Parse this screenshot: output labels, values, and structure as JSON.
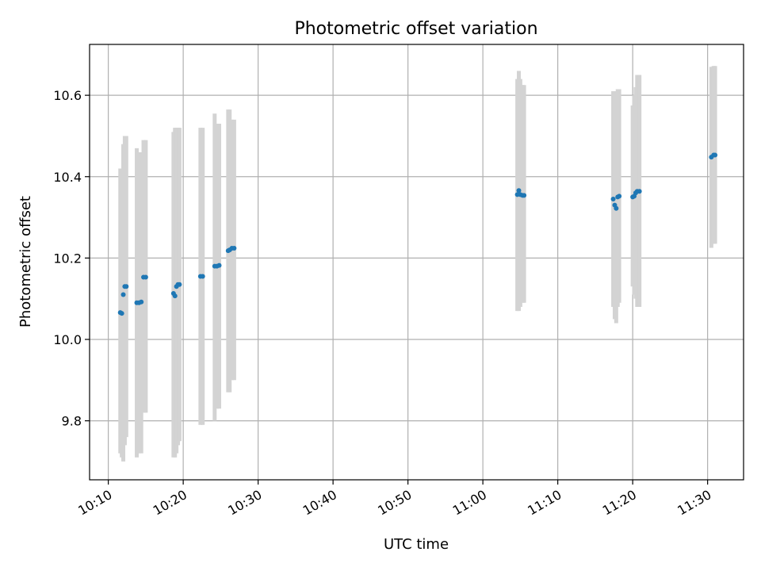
{
  "chart_data": {
    "type": "scatter",
    "title": "Photometric offset variation",
    "xlabel": "UTC time",
    "ylabel": "Photometric offset",
    "grid": true,
    "x_unit": "minutes after 10:00 UTC",
    "xlim": [
      7.5,
      94.8
    ],
    "ylim": [
      9.655,
      10.725
    ],
    "x_ticks": [
      {
        "value": 10,
        "label": "10:10"
      },
      {
        "value": 20,
        "label": "10:20"
      },
      {
        "value": 30,
        "label": "10:30"
      },
      {
        "value": 40,
        "label": "10:40"
      },
      {
        "value": 50,
        "label": "10:50"
      },
      {
        "value": 60,
        "label": "11:00"
      },
      {
        "value": 70,
        "label": "11:10"
      },
      {
        "value": 80,
        "label": "11:20"
      },
      {
        "value": 90,
        "label": "11:30"
      }
    ],
    "y_ticks": [
      {
        "value": 9.8,
        "label": "9.8"
      },
      {
        "value": 10.0,
        "label": "10.0"
      },
      {
        "value": 10.2,
        "label": "10.2"
      },
      {
        "value": 10.4,
        "label": "10.4"
      },
      {
        "value": 10.6,
        "label": "10.6"
      }
    ],
    "colors": {
      "points": "#1f77b4",
      "errorbars": "#d3d3d3",
      "grid": "#b0b0b0"
    },
    "points": [
      {
        "x": 11.6,
        "y": 10.066,
        "lo": 9.72,
        "hi": 10.42
      },
      {
        "x": 11.8,
        "y": 10.064,
        "lo": 9.71,
        "hi": 10.42
      },
      {
        "x": 12.0,
        "y": 10.11,
        "lo": 9.7,
        "hi": 10.48
      },
      {
        "x": 12.2,
        "y": 10.13,
        "lo": 9.74,
        "hi": 10.5
      },
      {
        "x": 12.4,
        "y": 10.13,
        "lo": 9.76,
        "hi": 10.5
      },
      {
        "x": 13.8,
        "y": 10.09,
        "lo": 9.71,
        "hi": 10.47
      },
      {
        "x": 14.1,
        "y": 10.09,
        "lo": 9.72,
        "hi": 10.46
      },
      {
        "x": 14.4,
        "y": 10.092,
        "lo": 9.72,
        "hi": 10.46
      },
      {
        "x": 14.7,
        "y": 10.153,
        "lo": 9.82,
        "hi": 10.49
      },
      {
        "x": 15.0,
        "y": 10.153,
        "lo": 9.82,
        "hi": 10.49
      },
      {
        "x": 18.7,
        "y": 10.113,
        "lo": 9.71,
        "hi": 10.51
      },
      {
        "x": 18.9,
        "y": 10.107,
        "lo": 9.71,
        "hi": 10.52
      },
      {
        "x": 19.1,
        "y": 10.13,
        "lo": 9.72,
        "hi": 10.52
      },
      {
        "x": 19.3,
        "y": 10.135,
        "lo": 9.74,
        "hi": 10.52
      },
      {
        "x": 19.5,
        "y": 10.135,
        "lo": 9.75,
        "hi": 10.52
      },
      {
        "x": 22.3,
        "y": 10.155,
        "lo": 9.79,
        "hi": 10.52
      },
      {
        "x": 22.6,
        "y": 10.155,
        "lo": 9.79,
        "hi": 10.52
      },
      {
        "x": 24.2,
        "y": 10.18,
        "lo": 9.8,
        "hi": 10.555
      },
      {
        "x": 24.5,
        "y": 10.18,
        "lo": 9.83,
        "hi": 10.53
      },
      {
        "x": 24.8,
        "y": 10.182,
        "lo": 9.83,
        "hi": 10.53
      },
      {
        "x": 26.0,
        "y": 10.218,
        "lo": 9.87,
        "hi": 10.565
      },
      {
        "x": 26.2,
        "y": 10.22,
        "lo": 9.87,
        "hi": 10.565
      },
      {
        "x": 26.5,
        "y": 10.224,
        "lo": 9.9,
        "hi": 10.54
      },
      {
        "x": 26.8,
        "y": 10.224,
        "lo": 9.9,
        "hi": 10.54
      },
      {
        "x": 64.6,
        "y": 10.356,
        "lo": 10.07,
        "hi": 10.64
      },
      {
        "x": 64.8,
        "y": 10.366,
        "lo": 10.07,
        "hi": 10.66
      },
      {
        "x": 65.0,
        "y": 10.356,
        "lo": 10.08,
        "hi": 10.64
      },
      {
        "x": 65.3,
        "y": 10.354,
        "lo": 10.09,
        "hi": 10.625
      },
      {
        "x": 65.5,
        "y": 10.354,
        "lo": 10.09,
        "hi": 10.625
      },
      {
        "x": 77.4,
        "y": 10.345,
        "lo": 10.08,
        "hi": 10.61
      },
      {
        "x": 77.6,
        "y": 10.33,
        "lo": 10.05,
        "hi": 10.61
      },
      {
        "x": 77.8,
        "y": 10.322,
        "lo": 10.04,
        "hi": 10.61
      },
      {
        "x": 78.0,
        "y": 10.35,
        "lo": 10.08,
        "hi": 10.615
      },
      {
        "x": 78.2,
        "y": 10.352,
        "lo": 10.09,
        "hi": 10.615
      },
      {
        "x": 80.0,
        "y": 10.35,
        "lo": 10.13,
        "hi": 10.575
      },
      {
        "x": 80.2,
        "y": 10.352,
        "lo": 10.11,
        "hi": 10.6
      },
      {
        "x": 80.4,
        "y": 10.36,
        "lo": 10.1,
        "hi": 10.62
      },
      {
        "x": 80.6,
        "y": 10.364,
        "lo": 10.08,
        "hi": 10.65
      },
      {
        "x": 80.9,
        "y": 10.364,
        "lo": 10.08,
        "hi": 10.65
      },
      {
        "x": 90.5,
        "y": 10.448,
        "lo": 10.225,
        "hi": 10.67
      },
      {
        "x": 90.8,
        "y": 10.453,
        "lo": 10.235,
        "hi": 10.672
      },
      {
        "x": 91.0,
        "y": 10.453,
        "lo": 10.235,
        "hi": 10.672
      }
    ]
  }
}
